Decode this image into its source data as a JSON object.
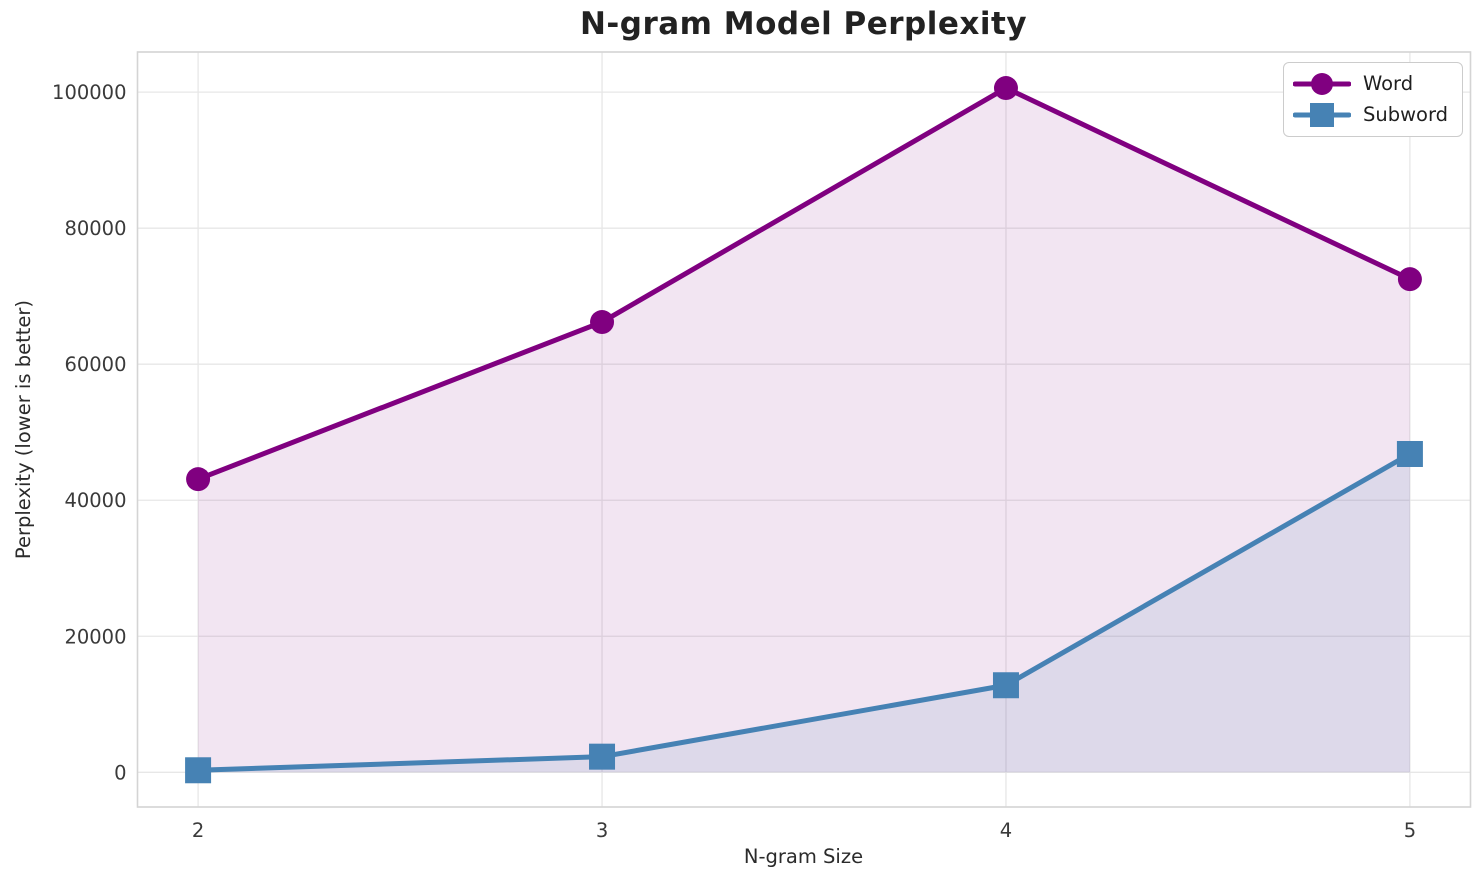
{
  "chart_data": {
    "type": "line",
    "title": "N-gram Model Perplexity",
    "xlabel": "N-gram Size",
    "ylabel": "Perplexity (lower is better)",
    "x": [
      2,
      3,
      4,
      5
    ],
    "xtick_labels": [
      "2",
      "3",
      "4",
      "5"
    ],
    "yticks": [
      0,
      20000,
      40000,
      60000,
      80000,
      100000
    ],
    "ytick_labels": [
      "0",
      "20000",
      "40000",
      "60000",
      "80000",
      "100000"
    ],
    "xlim": [
      1.85,
      5.15
    ],
    "ylim": [
      -5100,
      105900
    ],
    "grid": true,
    "legend_position": "upper right",
    "fill_to_zero": true,
    "series": [
      {
        "name": "Word",
        "color": "#800080",
        "marker": "circle",
        "fill_opacity": 0.1,
        "values": [
          43100,
          66200,
          100600,
          72500
        ]
      },
      {
        "name": "Subword",
        "color": "#4682b4",
        "marker": "square",
        "fill_opacity": 0.12,
        "values": [
          300,
          2300,
          12800,
          46800
        ]
      }
    ],
    "style": {
      "background": "#ffffff",
      "grid_color": "#e7e7e7",
      "spine_color": "#d4d4d4",
      "tick_text_color": "#3a3a3a",
      "title_color": "#222222",
      "line_width": 5
    }
  }
}
